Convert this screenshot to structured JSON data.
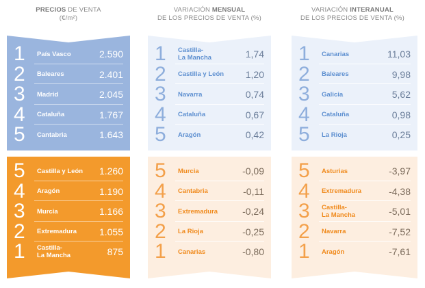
{
  "headers": {
    "c1_bold": "PRECIOS",
    "c1_rest": " DE VENTA",
    "c1_unit": "(€/m²)",
    "c2_pre": "VARIACIÓN ",
    "c2_bold": "MENSUAL",
    "c2_line2": "DE LOS PRECIOS DE VENTA (%)",
    "c3_pre": "VARIACIÓN ",
    "c3_bold": "INTERANUAL",
    "c3_line2": "DE LOS PRECIOS DE VENTA (%)"
  },
  "colors": {
    "blue_strong": "#9ab5de",
    "blue_pale": "#ebf1fa",
    "orange_strong": "#f39a2c",
    "orange_pale": "#fdeee0"
  },
  "price": {
    "top": [
      {
        "rank": "1",
        "region": "País Vasco",
        "value": "2.590"
      },
      {
        "rank": "2",
        "region": "Baleares",
        "value": "2.401"
      },
      {
        "rank": "3",
        "region": "Madrid",
        "value": "2.045"
      },
      {
        "rank": "4",
        "region": "Cataluña",
        "value": "1.767"
      },
      {
        "rank": "5",
        "region": "Cantabria",
        "value": "1.643"
      }
    ],
    "bottom": [
      {
        "rank": "5",
        "region": "Castilla y León",
        "value": "1.260"
      },
      {
        "rank": "4",
        "region": "Aragón",
        "value": "1.190"
      },
      {
        "rank": "3",
        "region": "Murcia",
        "value": "1.166"
      },
      {
        "rank": "2",
        "region": "Extremadura",
        "value": "1.055"
      },
      {
        "rank": "1",
        "region": "Castilla-\nLa Mancha",
        "value": "875"
      }
    ]
  },
  "monthly": {
    "top": [
      {
        "rank": "1",
        "region": "Castilla-\nLa Mancha",
        "value": "1,74"
      },
      {
        "rank": "2",
        "region": "Castilla y León",
        "value": "1,20"
      },
      {
        "rank": "3",
        "region": "Navarra",
        "value": "0,74"
      },
      {
        "rank": "4",
        "region": "Cataluña",
        "value": "0,67"
      },
      {
        "rank": "5",
        "region": "Aragón",
        "value": "0,42"
      }
    ],
    "bottom": [
      {
        "rank": "5",
        "region": "Murcia",
        "value": "-0,09"
      },
      {
        "rank": "4",
        "region": "Cantabria",
        "value": "-0,11"
      },
      {
        "rank": "3",
        "region": "Extremadura",
        "value": "-0,24"
      },
      {
        "rank": "2",
        "region": "La Rioja",
        "value": "-0,25"
      },
      {
        "rank": "1",
        "region": "Canarias",
        "value": "-0,80"
      }
    ]
  },
  "yearly": {
    "top": [
      {
        "rank": "1",
        "region": "Canarias",
        "value": "11,03"
      },
      {
        "rank": "2",
        "region": "Baleares",
        "value": "9,98"
      },
      {
        "rank": "3",
        "region": "Galicia",
        "value": "5,62"
      },
      {
        "rank": "4",
        "region": "Cataluña",
        "value": "0,98"
      },
      {
        "rank": "5",
        "region": "La Rioja",
        "value": "0,25"
      }
    ],
    "bottom": [
      {
        "rank": "5",
        "region": "Asturias",
        "value": "-3,97"
      },
      {
        "rank": "4",
        "region": "Extremadura",
        "value": "-4,38"
      },
      {
        "rank": "3",
        "region": "Castilla-\nLa Mancha",
        "value": "-5,01"
      },
      {
        "rank": "2",
        "region": "Navarra",
        "value": "-7,52"
      },
      {
        "rank": "1",
        "region": "Aragón",
        "value": "-7,61"
      }
    ]
  }
}
